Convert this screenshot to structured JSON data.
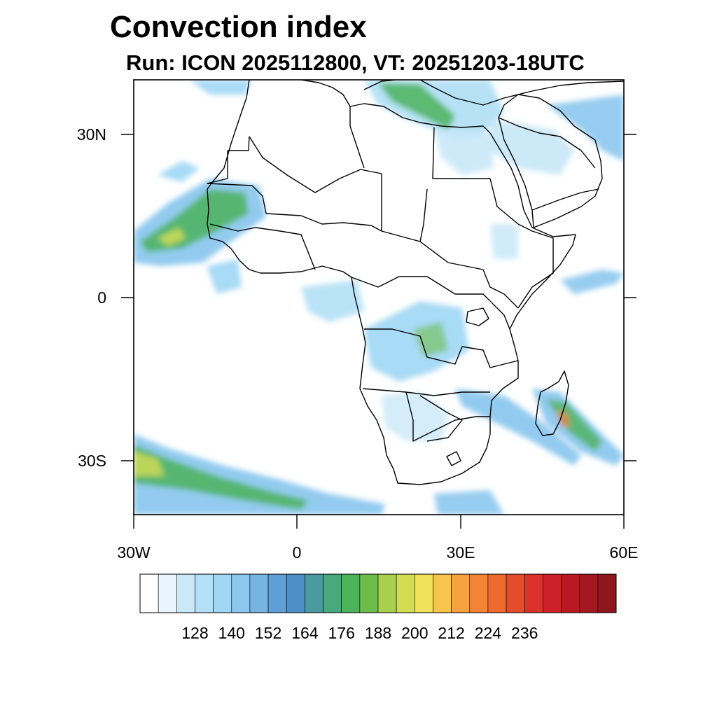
{
  "title": "Convection index",
  "subtitle": "Run: ICON 2025112800,  VT: 20251203-18UTC",
  "axes": {
    "lat_labels": [
      "30N",
      "0",
      "30S"
    ],
    "lon_labels": [
      "30W",
      "0",
      "30E",
      "60E"
    ]
  },
  "colorbar": {
    "labels": [
      "128",
      "140",
      "152",
      "164",
      "176",
      "188",
      "200",
      "212",
      "224",
      "236"
    ],
    "colors": [
      "#ffffff",
      "#e8f5fd",
      "#c9e8f8",
      "#b3e0f6",
      "#9fd7f4",
      "#8cc8ee",
      "#76b4e2",
      "#5f9fd5",
      "#4c8fc6",
      "#4a9aa0",
      "#48a97c",
      "#4cb35a",
      "#6ebc4b",
      "#a8cf4d",
      "#d4dd52",
      "#f0e25a",
      "#f7c54c",
      "#f7a23f",
      "#f48435",
      "#ee6a2d",
      "#e54c2a",
      "#dc3128",
      "#cc2128",
      "#b81a24",
      "#a21820",
      "#8e161c"
    ]
  },
  "colors": {
    "land_outline": "#000000",
    "frame": "#000000"
  }
}
